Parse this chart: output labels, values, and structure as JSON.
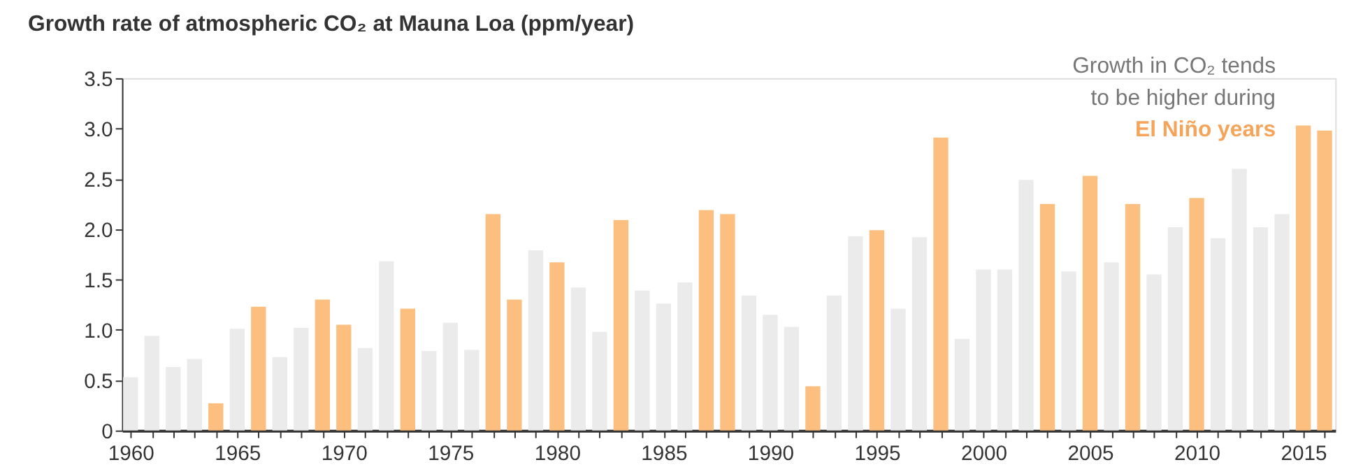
{
  "chart_data": {
    "type": "bar",
    "title": "Growth rate of atmospheric CO₂ at Mauna Loa (ppm/year)",
    "x": [
      1960,
      1961,
      1962,
      1963,
      1964,
      1965,
      1966,
      1967,
      1968,
      1969,
      1970,
      1971,
      1972,
      1973,
      1974,
      1975,
      1976,
      1977,
      1978,
      1979,
      1980,
      1981,
      1982,
      1983,
      1984,
      1985,
      1986,
      1987,
      1988,
      1989,
      1990,
      1991,
      1992,
      1993,
      1994,
      1995,
      1996,
      1997,
      1998,
      1999,
      2000,
      2001,
      2002,
      2003,
      2004,
      2005,
      2006,
      2007,
      2008,
      2009,
      2010,
      2011,
      2012,
      2013,
      2014,
      2015,
      2016
    ],
    "values": [
      0.53,
      0.94,
      0.63,
      0.71,
      0.27,
      1.01,
      1.23,
      0.73,
      1.02,
      1.3,
      1.05,
      0.82,
      1.68,
      1.21,
      0.79,
      1.07,
      0.8,
      2.15,
      1.3,
      1.79,
      1.67,
      1.42,
      0.98,
      2.09,
      1.39,
      1.26,
      1.47,
      2.19,
      2.15,
      1.34,
      1.15,
      1.03,
      0.44,
      1.34,
      1.93,
      1.99,
      1.21,
      1.92,
      2.91,
      0.91,
      1.6,
      1.6,
      2.49,
      2.25,
      1.58,
      2.53,
      1.67,
      2.25,
      1.55,
      2.02,
      2.31,
      1.91,
      2.6,
      2.02,
      2.15,
      3.03,
      2.98
    ],
    "colors": [
      "#ebebeb",
      "#ebebeb",
      "#ebebeb",
      "#ebebeb",
      "#fdbf7f",
      "#ebebeb",
      "#fdbf7f",
      "#ebebeb",
      "#ebebeb",
      "#fdbf7f",
      "#fdbf7f",
      "#ebebeb",
      "#ebebeb",
      "#fdbf7f",
      "#ebebeb",
      "#ebebeb",
      "#ebebeb",
      "#fdbf7f",
      "#fdbf7f",
      "#ebebeb",
      "#fdbf7f",
      "#ebebeb",
      "#ebebeb",
      "#fdbf7f",
      "#ebebeb",
      "#ebebeb",
      "#ebebeb",
      "#fdbf7f",
      "#fdbf7f",
      "#ebebeb",
      "#ebebeb",
      "#ebebeb",
      "#fdbf7f",
      "#ebebeb",
      "#ebebeb",
      "#fdbf7f",
      "#ebebeb",
      "#ebebeb",
      "#fdbf7f",
      "#ebebeb",
      "#ebebeb",
      "#ebebeb",
      "#ebebeb",
      "#fdbf7f",
      "#ebebeb",
      "#fdbf7f",
      "#ebebeb",
      "#fdbf7f",
      "#ebebeb",
      "#ebebeb",
      "#fdbf7f",
      "#ebebeb",
      "#ebebeb",
      "#ebebeb",
      "#ebebeb",
      "#fdbf7f",
      "#fdbf7f"
    ],
    "xlim": [
      1959.6,
      2016.5
    ],
    "xticks": [
      1960,
      {
        "value": 1961,
        "label": null
      },
      {
        "value": 1962,
        "label": null
      },
      {
        "value": 1963,
        "label": null
      },
      {
        "value": 1964,
        "label": null
      },
      1965,
      {
        "value": 1966,
        "label": null
      },
      {
        "value": 1967,
        "label": null
      },
      {
        "value": 1968,
        "label": null
      },
      {
        "value": 1969,
        "label": null
      },
      1970,
      {
        "value": 1971,
        "label": null
      },
      {
        "value": 1972,
        "label": null
      },
      {
        "value": 1973,
        "label": null
      },
      {
        "value": 1974,
        "label": null
      },
      1975,
      {
        "value": 1976,
        "label": null
      },
      {
        "value": 1977,
        "label": null
      },
      {
        "value": 1978,
        "label": null
      },
      {
        "value": 1979,
        "label": null
      },
      1980,
      {
        "value": 1981,
        "label": null
      },
      {
        "value": 1982,
        "label": null
      },
      {
        "value": 1983,
        "label": null
      },
      {
        "value": 1984,
        "label": null
      },
      1985,
      {
        "value": 1986,
        "label": null
      },
      {
        "value": 1987,
        "label": null
      },
      {
        "value": 1988,
        "label": null
      },
      {
        "value": 1989,
        "label": null
      },
      1990,
      {
        "value": 1991,
        "label": null
      },
      {
        "value": 1992,
        "label": null
      },
      {
        "value": 1993,
        "label": null
      },
      {
        "value": 1994,
        "label": null
      },
      1995,
      {
        "value": 1996,
        "label": null
      },
      {
        "value": 1997,
        "label": null
      },
      {
        "value": 1998,
        "label": null
      },
      {
        "value": 1999,
        "label": null
      },
      2000,
      {
        "value": 2001,
        "label": null
      },
      {
        "value": 2002,
        "label": null
      },
      {
        "value": 2003,
        "label": null
      },
      {
        "value": 2004,
        "label": null
      },
      2005,
      {
        "value": 2006,
        "label": null
      },
      {
        "value": 2007,
        "label": null
      },
      {
        "value": 2008,
        "label": null
      },
      {
        "value": 2009,
        "label": null
      },
      2010,
      {
        "value": 2011,
        "label": null
      },
      {
        "value": 2012,
        "label": null
      },
      {
        "value": 2013,
        "label": null
      },
      {
        "value": 2014,
        "label": null
      },
      2015,
      {
        "value": 2016,
        "label": null
      }
    ],
    "ylim": [
      0,
      3.5
    ],
    "yticks": [
      0,
      0.5,
      {
        "value": 1,
        "label": "1.0"
      },
      1.5,
      {
        "value": 2,
        "label": "2.0"
      },
      2.5,
      {
        "value": 3,
        "label": "3.0"
      },
      3.5
    ],
    "grid": false,
    "legend": false,
    "annotations": [
      "Growth in CO₂ tends",
      "to be higher during",
      "El Niño years"
    ]
  }
}
